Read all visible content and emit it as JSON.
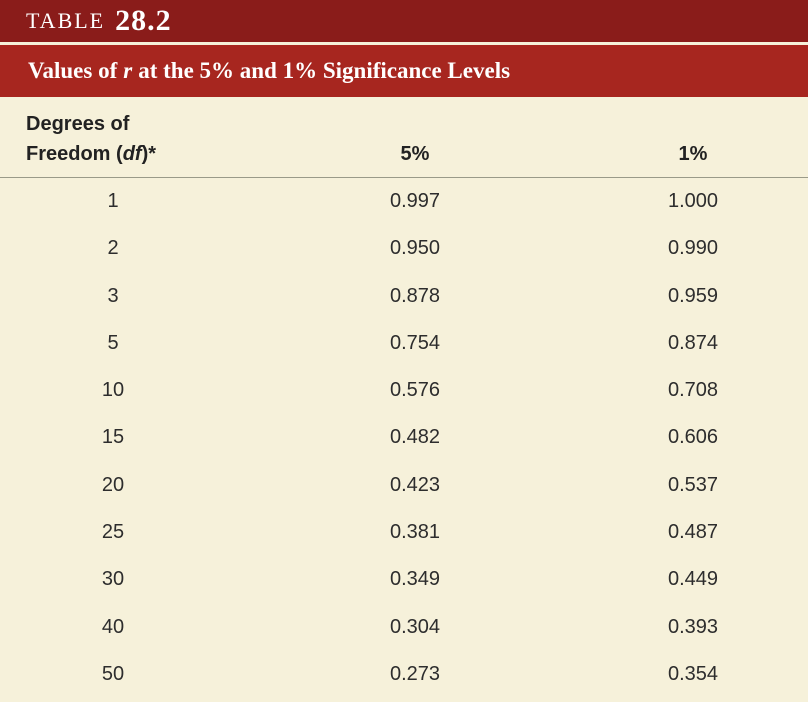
{
  "header": {
    "label": "TABLE",
    "number": "28.2",
    "subtitle": {
      "pre": "Values of",
      "italic": "r",
      "post": "at the 5% and 1% Significance Levels"
    }
  },
  "table": {
    "columns": [
      {
        "line1": "Degrees of",
        "pre": "Freedom (",
        "italic": "df",
        "post": ")*"
      },
      {
        "text": "5%"
      },
      {
        "text": "1%"
      }
    ],
    "rows": [
      [
        "1",
        "0.997",
        "1.000"
      ],
      [
        "2",
        "0.950",
        "0.990"
      ],
      [
        "3",
        "0.878",
        "0.959"
      ],
      [
        "5",
        "0.754",
        "0.874"
      ],
      [
        "10",
        "0.576",
        "0.708"
      ],
      [
        "15",
        "0.482",
        "0.606"
      ],
      [
        "20",
        "0.423",
        "0.537"
      ],
      [
        "25",
        "0.381",
        "0.487"
      ],
      [
        "30",
        "0.349",
        "0.449"
      ],
      [
        "40",
        "0.304",
        "0.393"
      ],
      [
        "50",
        "0.273",
        "0.354"
      ]
    ]
  }
}
